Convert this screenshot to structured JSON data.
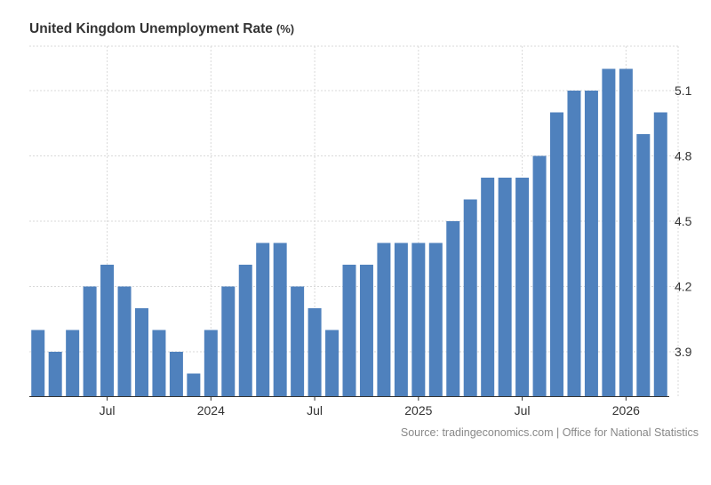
{
  "header": {
    "title": "United Kingdom Unemployment Rate",
    "unit": "(%)"
  },
  "footer": {
    "source": "Source: tradingeconomics.com | Office for National Statistics"
  },
  "colors": {
    "bar": "#4f81bd",
    "grid": "#d9d9d9",
    "axis": "#333333"
  },
  "chart_data": {
    "type": "bar",
    "x_ticks": [
      {
        "index": 4,
        "label": "Jul"
      },
      {
        "index": 10,
        "label": "2024"
      },
      {
        "index": 16,
        "label": "Jul"
      },
      {
        "index": 22,
        "label": "2025"
      },
      {
        "index": 28,
        "label": "Jul"
      },
      {
        "index": 34,
        "label": "2026"
      }
    ],
    "values": [
      4.0,
      3.9,
      4.0,
      4.2,
      4.3,
      4.2,
      4.1,
      4.0,
      3.9,
      3.8,
      4.0,
      4.2,
      4.3,
      4.4,
      4.4,
      4.2,
      4.1,
      4.0,
      4.3,
      4.3,
      4.4,
      4.4,
      4.4,
      4.4,
      4.5,
      4.6,
      4.7,
      4.7,
      4.7,
      4.8,
      5.0,
      5.1,
      5.1,
      5.2,
      5.2,
      4.9,
      5.0
    ],
    "y_ticks": [
      3.9,
      4.2,
      4.5,
      4.8,
      5.1
    ],
    "y_axis_position": "right",
    "grid": true,
    "legend": "none"
  }
}
